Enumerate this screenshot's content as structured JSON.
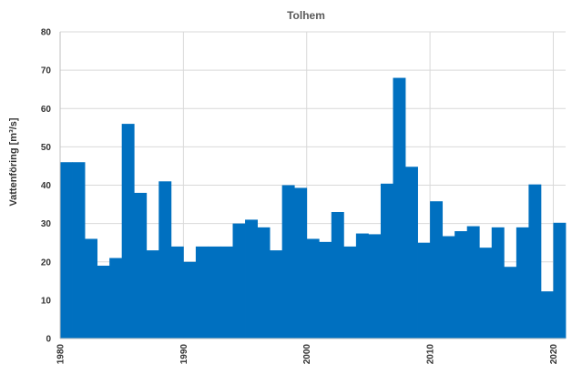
{
  "chart_data": {
    "type": "bar",
    "title": "Tolhem",
    "xlabel": "",
    "ylabel": "Vattenföring [m³/s]",
    "ylim": [
      0,
      80
    ],
    "yticks": [
      0,
      10,
      20,
      30,
      40,
      50,
      60,
      70,
      80
    ],
    "xlim": [
      1980,
      2021
    ],
    "xticks": [
      1980,
      1990,
      2000,
      2010,
      2020
    ],
    "grid": true,
    "legend": "none",
    "bar_color": "#0070c0",
    "x": [
      1980,
      1981,
      1982,
      1983,
      1984,
      1985,
      1986,
      1987,
      1988,
      1989,
      1990,
      1991,
      1992,
      1993,
      1994,
      1995,
      1996,
      1997,
      1998,
      1999,
      2000,
      2001,
      2002,
      2003,
      2004,
      2005,
      2006,
      2007,
      2008,
      2009,
      2010,
      2011,
      2012,
      2013,
      2014,
      2015,
      2016,
      2017,
      2018,
      2019,
      2020
    ],
    "values": [
      46,
      46,
      26,
      19,
      21,
      56,
      38,
      23,
      41,
      24,
      20,
      24,
      24,
      24,
      30,
      31,
      29,
      23,
      40,
      39.3,
      26,
      25.2,
      33,
      24,
      27.4,
      27.2,
      40.4,
      68,
      44.8,
      25,
      35.8,
      26.7,
      28,
      29.3,
      23.7,
      29,
      18.7,
      29,
      40.2,
      12.3,
      30.2
    ]
  }
}
